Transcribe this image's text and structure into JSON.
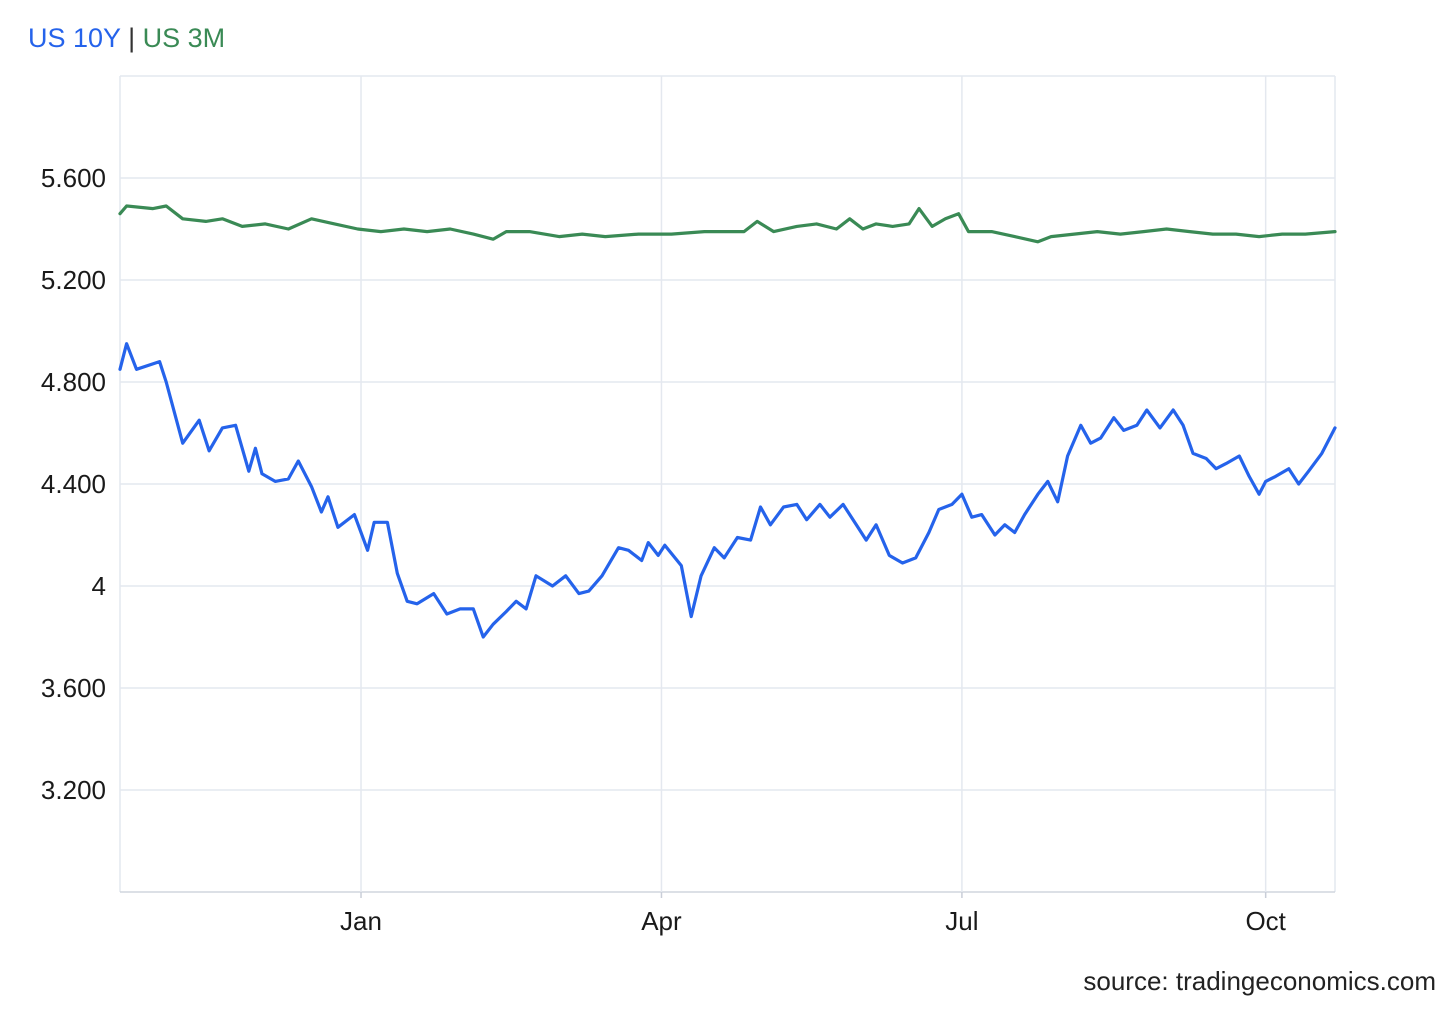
{
  "legend": {
    "series1": "US 10Y",
    "separator": "|",
    "series2": "US 3M"
  },
  "source": "source: tradingeconomics.com",
  "colors": {
    "us10y": "#2563eb",
    "us3m": "#3a8a55",
    "grid": "#e4e8ef"
  },
  "chart_data": {
    "type": "line",
    "title": "",
    "xlabel": "",
    "ylabel": "",
    "x_ticks": [
      "Jan",
      "Apr",
      "Jul",
      "Oct"
    ],
    "y_ticks": [
      "3.200",
      "3.600",
      "4",
      "4.400",
      "4.800",
      "5.200",
      "5.600"
    ],
    "ylim": [
      2.8,
      6.0
    ],
    "x_range": [
      "2023-10-20",
      "2024-10-22"
    ],
    "legend_position": "top-left",
    "grid": true,
    "series": [
      {
        "name": "US 10Y",
        "points": [
          [
            "2023-10-20",
            4.85
          ],
          [
            "2023-10-22",
            4.95
          ],
          [
            "2023-10-25",
            4.85
          ],
          [
            "2023-11-01",
            4.88
          ],
          [
            "2023-11-03",
            4.8
          ],
          [
            "2023-11-08",
            4.56
          ],
          [
            "2023-11-13",
            4.65
          ],
          [
            "2023-11-16",
            4.53
          ],
          [
            "2023-11-20",
            4.62
          ],
          [
            "2023-11-24",
            4.63
          ],
          [
            "2023-11-28",
            4.45
          ],
          [
            "2023-11-30",
            4.54
          ],
          [
            "2023-12-02",
            4.44
          ],
          [
            "2023-12-06",
            4.41
          ],
          [
            "2023-12-10",
            4.42
          ],
          [
            "2023-12-13",
            4.49
          ],
          [
            "2023-12-17",
            4.39
          ],
          [
            "2023-12-20",
            4.29
          ],
          [
            "2023-12-22",
            4.35
          ],
          [
            "2023-12-25",
            4.23
          ],
          [
            "2023-12-30",
            4.28
          ],
          [
            "2024-01-03",
            4.14
          ],
          [
            "2024-01-05",
            4.25
          ],
          [
            "2024-01-09",
            4.25
          ],
          [
            "2024-01-12",
            4.05
          ],
          [
            "2024-01-15",
            3.94
          ],
          [
            "2024-01-18",
            3.93
          ],
          [
            "2024-01-23",
            3.97
          ],
          [
            "2024-01-27",
            3.89
          ],
          [
            "2024-01-31",
            3.91
          ],
          [
            "2024-02-04",
            3.91
          ],
          [
            "2024-02-07",
            3.8
          ],
          [
            "2024-02-10",
            3.85
          ],
          [
            "2024-02-14",
            3.9
          ],
          [
            "2024-02-17",
            3.94
          ],
          [
            "2024-02-20",
            3.91
          ],
          [
            "2024-02-23",
            4.04
          ],
          [
            "2024-02-28",
            4.0
          ],
          [
            "2024-03-03",
            4.04
          ],
          [
            "2024-03-07",
            3.97
          ],
          [
            "2024-03-10",
            3.98
          ],
          [
            "2024-03-14",
            4.04
          ],
          [
            "2024-03-19",
            4.15
          ],
          [
            "2024-03-22",
            4.14
          ],
          [
            "2024-03-26",
            4.1
          ],
          [
            "2024-03-28",
            4.17
          ],
          [
            "2024-03-31",
            4.12
          ],
          [
            "2024-04-02",
            4.16
          ],
          [
            "2024-04-07",
            4.08
          ],
          [
            "2024-04-10",
            3.88
          ],
          [
            "2024-04-13",
            4.04
          ],
          [
            "2024-04-17",
            4.15
          ],
          [
            "2024-04-20",
            4.11
          ],
          [
            "2024-04-24",
            4.19
          ],
          [
            "2024-04-28",
            4.18
          ],
          [
            "2024-05-01",
            4.31
          ],
          [
            "2024-05-04",
            4.24
          ],
          [
            "2024-05-08",
            4.31
          ],
          [
            "2024-05-12",
            4.32
          ],
          [
            "2024-05-15",
            4.26
          ],
          [
            "2024-05-19",
            4.32
          ],
          [
            "2024-05-22",
            4.27
          ],
          [
            "2024-05-26",
            4.32
          ],
          [
            "2024-05-30",
            4.24
          ],
          [
            "2024-06-02",
            4.18
          ],
          [
            "2024-06-05",
            4.24
          ],
          [
            "2024-06-09",
            4.12
          ],
          [
            "2024-06-13",
            4.09
          ],
          [
            "2024-06-17",
            4.11
          ],
          [
            "2024-06-21",
            4.21
          ],
          [
            "2024-06-24",
            4.3
          ],
          [
            "2024-06-28",
            4.32
          ],
          [
            "2024-07-01",
            4.36
          ],
          [
            "2024-07-04",
            4.27
          ],
          [
            "2024-07-07",
            4.28
          ],
          [
            "2024-07-11",
            4.2
          ],
          [
            "2024-07-14",
            4.24
          ],
          [
            "2024-07-17",
            4.21
          ],
          [
            "2024-07-20",
            4.28
          ],
          [
            "2024-07-24",
            4.36
          ],
          [
            "2024-07-27",
            4.41
          ],
          [
            "2024-07-30",
            4.33
          ],
          [
            "2024-08-02",
            4.51
          ],
          [
            "2024-08-06",
            4.63
          ],
          [
            "2024-08-09",
            4.56
          ],
          [
            "2024-08-12",
            4.58
          ],
          [
            "2024-08-16",
            4.66
          ],
          [
            "2024-08-19",
            4.61
          ],
          [
            "2024-08-23",
            4.63
          ],
          [
            "2024-08-26",
            4.69
          ],
          [
            "2024-08-30",
            4.62
          ],
          [
            "2024-09-03",
            4.69
          ],
          [
            "2024-09-06",
            4.63
          ],
          [
            "2024-09-09",
            4.52
          ],
          [
            "2024-09-13",
            4.5
          ],
          [
            "2024-09-16",
            4.46
          ],
          [
            "2024-09-19",
            4.48
          ],
          [
            "2024-09-23",
            4.51
          ],
          [
            "2024-09-26",
            4.43
          ],
          [
            "2024-09-29",
            4.36
          ],
          [
            "2024-10-01",
            4.41
          ],
          [
            "2024-10-04",
            4.43
          ],
          [
            "2024-10-08",
            4.46
          ],
          [
            "2024-10-11",
            4.4
          ],
          [
            "2024-10-14",
            4.45
          ],
          [
            "2024-10-18",
            4.52
          ],
          [
            "2024-10-22",
            4.62
          ]
        ]
      },
      {
        "name": "US 3M",
        "points": [
          [
            "2023-10-20",
            5.46
          ],
          [
            "2023-10-22",
            5.49
          ],
          [
            "2023-10-30",
            5.48
          ],
          [
            "2023-11-03",
            5.49
          ],
          [
            "2023-11-08",
            5.44
          ],
          [
            "2023-11-15",
            5.43
          ],
          [
            "2023-11-20",
            5.44
          ],
          [
            "2023-11-26",
            5.41
          ],
          [
            "2023-12-03",
            5.42
          ],
          [
            "2023-12-10",
            5.4
          ],
          [
            "2023-12-17",
            5.44
          ],
          [
            "2023-12-24",
            5.42
          ],
          [
            "2023-12-31",
            5.4
          ],
          [
            "2024-01-07",
            5.39
          ],
          [
            "2024-01-14",
            5.4
          ],
          [
            "2024-01-21",
            5.39
          ],
          [
            "2024-01-28",
            5.4
          ],
          [
            "2024-02-04",
            5.38
          ],
          [
            "2024-02-10",
            5.36
          ],
          [
            "2024-02-14",
            5.39
          ],
          [
            "2024-02-21",
            5.39
          ],
          [
            "2024-03-01",
            5.37
          ],
          [
            "2024-03-08",
            5.38
          ],
          [
            "2024-03-15",
            5.37
          ],
          [
            "2024-03-25",
            5.38
          ],
          [
            "2024-04-04",
            5.38
          ],
          [
            "2024-04-14",
            5.39
          ],
          [
            "2024-04-20",
            5.39
          ],
          [
            "2024-04-26",
            5.39
          ],
          [
            "2024-04-30",
            5.43
          ],
          [
            "2024-05-05",
            5.39
          ],
          [
            "2024-05-12",
            5.41
          ],
          [
            "2024-05-18",
            5.42
          ],
          [
            "2024-05-24",
            5.4
          ],
          [
            "2024-05-28",
            5.44
          ],
          [
            "2024-06-01",
            5.4
          ],
          [
            "2024-06-05",
            5.42
          ],
          [
            "2024-06-10",
            5.41
          ],
          [
            "2024-06-15",
            5.42
          ],
          [
            "2024-06-18",
            5.48
          ],
          [
            "2024-06-22",
            5.41
          ],
          [
            "2024-06-26",
            5.44
          ],
          [
            "2024-06-30",
            5.46
          ],
          [
            "2024-07-03",
            5.39
          ],
          [
            "2024-07-10",
            5.39
          ],
          [
            "2024-07-17",
            5.37
          ],
          [
            "2024-07-24",
            5.35
          ],
          [
            "2024-07-28",
            5.37
          ],
          [
            "2024-08-04",
            5.38
          ],
          [
            "2024-08-11",
            5.39
          ],
          [
            "2024-08-18",
            5.38
          ],
          [
            "2024-08-25",
            5.39
          ],
          [
            "2024-09-01",
            5.4
          ],
          [
            "2024-09-08",
            5.39
          ],
          [
            "2024-09-15",
            5.38
          ],
          [
            "2024-09-22",
            5.38
          ],
          [
            "2024-09-29",
            5.37
          ],
          [
            "2024-10-06",
            5.38
          ],
          [
            "2024-10-13",
            5.38
          ],
          [
            "2024-10-22",
            5.39
          ]
        ]
      }
    ]
  }
}
